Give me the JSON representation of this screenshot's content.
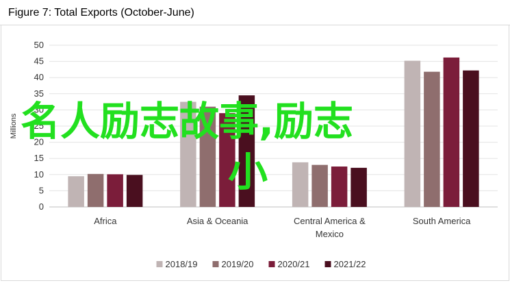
{
  "title": "Figure 7: Total Exports (October-June)",
  "chart_data": {
    "type": "bar",
    "title": "Figure 7: Total Exports (October-June)",
    "ylabel": "Millions",
    "xlabel": "",
    "ylim": [
      0,
      50
    ],
    "yticks": [
      0,
      5,
      10,
      15,
      20,
      25,
      30,
      35,
      40,
      45,
      50
    ],
    "grid": true,
    "legend_position": "bottom",
    "categories": [
      "Africa",
      "Asia & Oceania",
      "Central America & Mexico",
      "South America"
    ],
    "category_lines": [
      [
        "Africa"
      ],
      [
        "Asia & Oceania"
      ],
      [
        "Central America &",
        "Mexico"
      ],
      [
        "South America"
      ]
    ],
    "series": [
      {
        "name": "2018/19",
        "color": "#c0b4b4",
        "values": [
          9.5,
          32.5,
          13.8,
          45.2
        ]
      },
      {
        "name": "2019/20",
        "color": "#8f6e6e",
        "values": [
          10.2,
          31.0,
          13.0,
          41.8
        ]
      },
      {
        "name": "2020/21",
        "color": "#7b1d3a",
        "values": [
          10.1,
          29.0,
          12.5,
          46.2
        ]
      },
      {
        "name": "2021/22",
        "color": "#4a0f1f",
        "values": [
          9.9,
          34.5,
          12.1,
          42.2
        ]
      }
    ]
  },
  "overlay": {
    "line1": "名人励志故事,励志",
    "line2": "小",
    "color": "#22e01f"
  }
}
